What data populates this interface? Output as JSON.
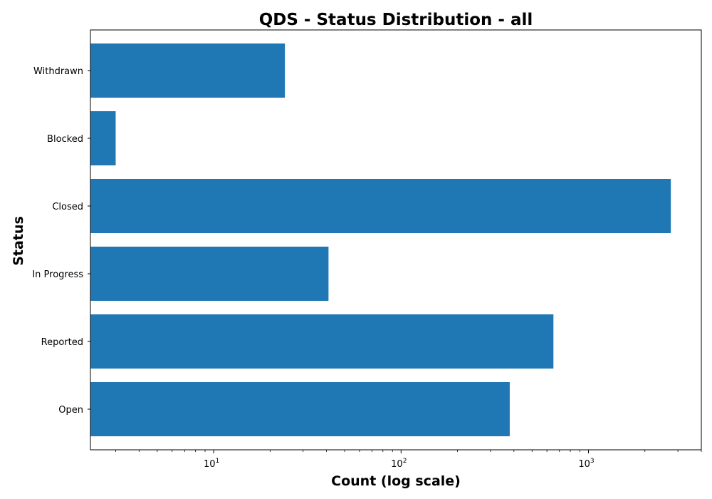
{
  "chart_data": {
    "type": "bar",
    "orientation": "horizontal",
    "title": "QDS - Status Distribution - all",
    "xlabel": "Count (log scale)",
    "ylabel": "Status",
    "xscale": "log",
    "xlim": [
      2.2,
      4000
    ],
    "xticks": [
      {
        "value": 10,
        "base": "10",
        "exp": "1"
      },
      {
        "value": 100,
        "base": "10",
        "exp": "2"
      },
      {
        "value": 1000,
        "base": "10",
        "exp": "3"
      }
    ],
    "categories": [
      "Open",
      "Reported",
      "In Progress",
      "Closed",
      "Blocked",
      "Withdrawn"
    ],
    "values": [
      380,
      650,
      41,
      2750,
      3,
      24
    ],
    "bar_color": "#1f77b4",
    "grid": false,
    "legend": "none"
  }
}
